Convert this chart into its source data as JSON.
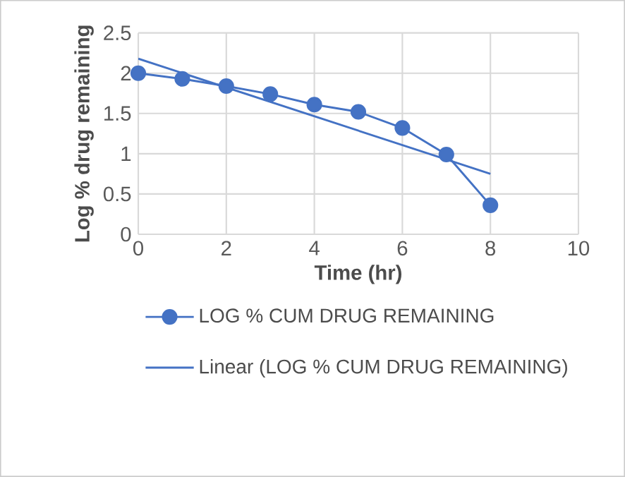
{
  "chart_data": {
    "type": "line",
    "xlabel": "Time (hr)",
    "ylabel": "Log % drug remaining",
    "xlim": [
      0,
      10
    ],
    "xticks": [
      0,
      2,
      4,
      6,
      8,
      10
    ],
    "ylim": [
      0,
      2.5
    ],
    "yticks": [
      0,
      0.5,
      1,
      1.5,
      2,
      2.5
    ],
    "grid": true,
    "legend": "bottom",
    "series": [
      {
        "name": "LOG % CUM DRUG REMAINING",
        "color": "#4472c4",
        "marker": "circle",
        "x": [
          0,
          1,
          2,
          3,
          4,
          5,
          6,
          7,
          8
        ],
        "values": [
          2.0,
          1.93,
          1.84,
          1.74,
          1.61,
          1.52,
          1.32,
          0.99,
          0.36
        ]
      },
      {
        "name": "Linear (LOG % CUM DRUG REMAINING)",
        "type": "line",
        "color": "#4472c4",
        "marker": "none",
        "x": [
          0,
          8
        ],
        "values": [
          2.18,
          0.75
        ]
      }
    ]
  }
}
